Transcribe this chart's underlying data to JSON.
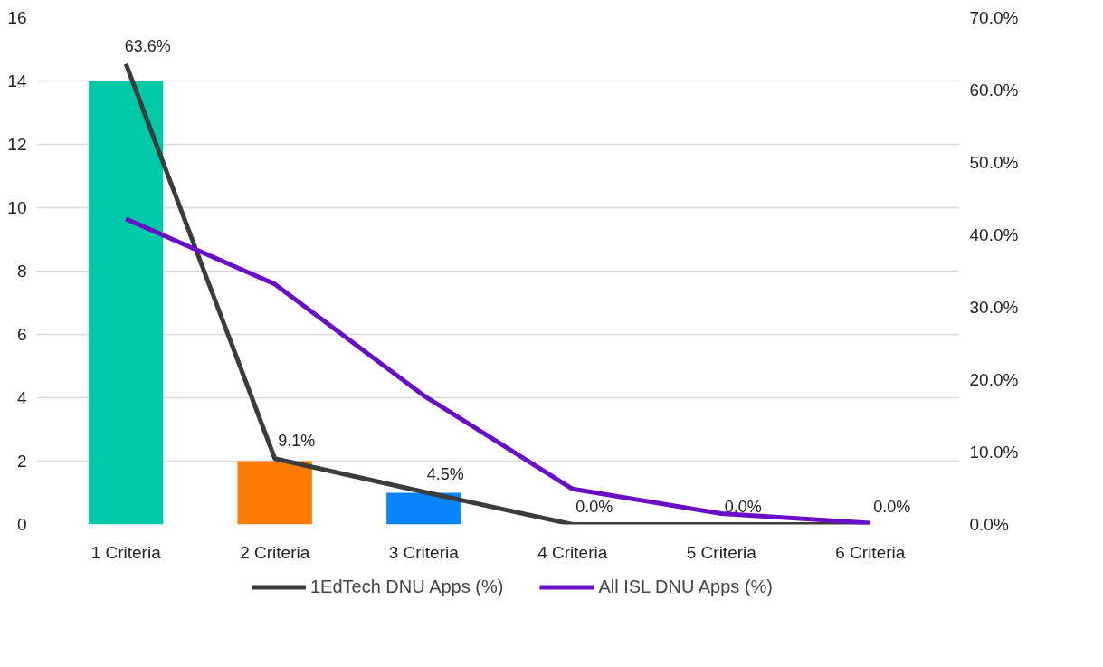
{
  "chart_data": {
    "type": "bar",
    "categories": [
      "1 Criteria",
      "2 Criteria",
      "3 Criteria",
      "4 Criteria",
      "5 Criteria",
      "6 Criteria"
    ],
    "series": [
      {
        "colors": [
          "#00c9a7",
          "#ff7a00",
          "#0a84ff",
          "#00c9a7",
          "#00c9a7",
          "#00c9a7"
        ],
        "values": [
          14,
          2,
          1,
          0,
          0,
          0
        ]
      },
      {
        "type": "line",
        "name": "1EdTech DNU Apps (%)",
        "color": "#3c3c3c",
        "axis": "y2",
        "values": [
          63.6,
          9.1,
          4.5,
          0,
          0,
          0
        ],
        "value_labels": [
          "63.6%",
          "9.1%",
          "4.5%",
          "0.0%",
          "0.0%",
          "0.0%"
        ]
      },
      {
        "type": "line",
        "name": "All ISL DNU Apps (%)",
        "color": "#6a0dc8",
        "axis": "y2",
        "values": [
          42.2,
          33.2,
          17.8,
          4.9,
          1.5,
          0.2
        ]
      }
    ],
    "ylim": [
      0,
      16
    ],
    "yticks": [
      0,
      2,
      4,
      6,
      8,
      10,
      12,
      14,
      16
    ],
    "y2lim": [
      0,
      70
    ],
    "y2ticks": [
      {
        "value": 0,
        "label": "0.0%"
      },
      {
        "value": 10,
        "label": "10.0%"
      },
      {
        "value": 20,
        "label": "20.0%"
      },
      {
        "value": 30,
        "label": "30.0%"
      },
      {
        "value": 40,
        "label": "40.0%"
      },
      {
        "value": 50,
        "label": "50.0%"
      },
      {
        "value": 60,
        "label": "60.0%"
      },
      {
        "value": 70,
        "label": "70.0%"
      }
    ],
    "grid": "y",
    "legend": "bottom",
    "line_style": "solid",
    "marker": "none"
  }
}
